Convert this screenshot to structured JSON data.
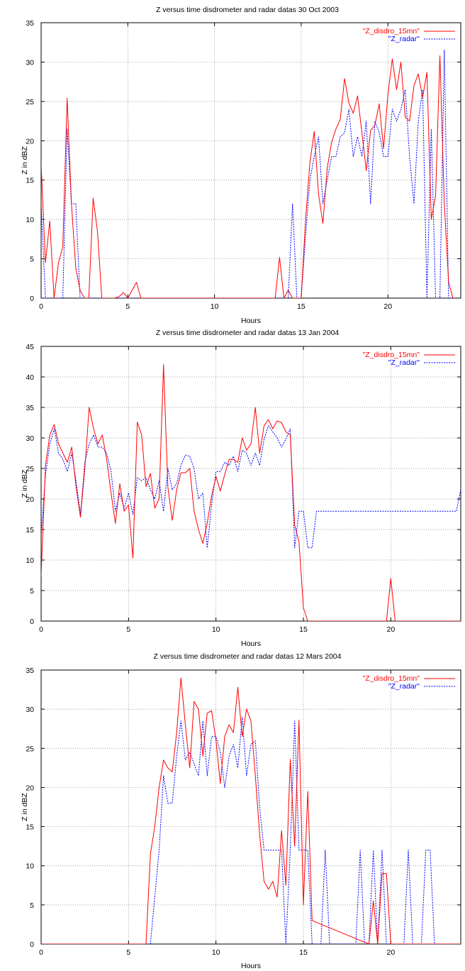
{
  "chart_data": [
    {
      "type": "line",
      "title": "Z versus time disdrometer and radar datas  30 Oct 2003",
      "xlabel": "Hours",
      "ylabel": "Z in dBZ",
      "xlim": [
        0,
        24.2
      ],
      "ylim": [
        0,
        35
      ],
      "xticks": [
        0,
        5,
        10,
        15,
        20
      ],
      "yticks": [
        0,
        5,
        10,
        15,
        20,
        25,
        30,
        35
      ],
      "grid": true,
      "legend": "top-right",
      "series": [
        {
          "name": "\"Z_disdro_15mn\"",
          "color": "#ff0000",
          "style": "solid",
          "x": [
            0,
            0.25,
            0.5,
            0.75,
            1.0,
            1.25,
            1.5,
            1.75,
            2.0,
            2.25,
            2.5,
            2.75,
            3.0,
            3.25,
            3.5,
            3.75,
            4.0,
            4.25,
            4.5,
            4.75,
            5.0,
            5.25,
            5.5,
            5.75,
            6.0,
            13.5,
            13.75,
            14.0,
            14.25,
            14.5,
            14.75,
            15.0,
            15.25,
            15.5,
            15.75,
            16.0,
            16.25,
            16.5,
            16.75,
            17.0,
            17.25,
            17.5,
            17.75,
            18.0,
            18.25,
            18.5,
            18.75,
            19.0,
            19.25,
            19.5,
            19.75,
            20.0,
            20.25,
            20.5,
            20.75,
            21.0,
            21.25,
            21.5,
            21.75,
            22.0,
            22.25,
            22.5,
            22.75,
            23.0,
            23.25,
            23.5,
            23.75
          ],
          "values": [
            17,
            4.5,
            9.8,
            0,
            4.5,
            6.5,
            25.4,
            12,
            3.8,
            1,
            0,
            0,
            12.7,
            8.5,
            0,
            0,
            0,
            0,
            0.2,
            0.7,
            0,
            1,
            2,
            0,
            0,
            0,
            5.2,
            0,
            1,
            0,
            0,
            0,
            10,
            17.2,
            21.2,
            13.2,
            9.5,
            16.5,
            19.8,
            21.5,
            22.7,
            27.9,
            24.8,
            23.5,
            25.7,
            21,
            16.2,
            21.3,
            22,
            24.7,
            19,
            25.9,
            30.4,
            26.5,
            30,
            23,
            22.5,
            27,
            28.5,
            25.5,
            28.7,
            10,
            13,
            30.8,
            12,
            2,
            0
          ]
        },
        {
          "name": "\"Z_radar\"",
          "color": "#0000ff",
          "style": "dotted",
          "x": [
            0,
            0.25,
            0.5,
            0.75,
            1.0,
            1.25,
            1.5,
            1.75,
            2.0,
            2.25,
            2.5,
            13.75,
            14.0,
            14.25,
            14.5,
            14.75,
            15.0,
            15.25,
            15.5,
            15.75,
            16.0,
            16.25,
            16.5,
            16.75,
            17.0,
            17.25,
            17.5,
            17.75,
            18.0,
            18.25,
            18.5,
            18.75,
            19.0,
            19.25,
            19.5,
            19.75,
            20.0,
            20.25,
            20.5,
            20.75,
            21.0,
            21.25,
            21.5,
            21.75,
            22.0,
            22.25,
            22.5,
            22.75,
            23.0,
            23.25,
            23.5,
            23.75
          ],
          "values": [
            12,
            0,
            0,
            0,
            0,
            0,
            21.5,
            12,
            12,
            0,
            0,
            0,
            0,
            0,
            12,
            0,
            0,
            8,
            15,
            18,
            20.5,
            12,
            15,
            18,
            18,
            20.5,
            21,
            24,
            18,
            20.5,
            18,
            22.5,
            12,
            22.5,
            21,
            18,
            18,
            24,
            22.5,
            24,
            26.5,
            18,
            12,
            22.5,
            26.5,
            0,
            21.5,
            0,
            0,
            31.5,
            0,
            0
          ]
        }
      ]
    },
    {
      "type": "line",
      "title": "Z versus time disdrometer and radar datas  13 Jan 2004",
      "xlabel": "Hours",
      "ylabel": "Z in dBZ",
      "xlim": [
        0,
        24
      ],
      "ylim": [
        0,
        45
      ],
      "xticks": [
        0,
        5,
        10,
        15,
        20
      ],
      "yticks": [
        0,
        5,
        10,
        15,
        20,
        25,
        30,
        35,
        40,
        45
      ],
      "grid": true,
      "legend": "top-right",
      "series": [
        {
          "name": "\"Z_disdro_15mn\"",
          "color": "#ff0000",
          "style": "solid",
          "x": [
            0,
            0.25,
            0.5,
            0.75,
            1.0,
            1.25,
            1.5,
            1.75,
            2.0,
            2.25,
            2.5,
            2.75,
            3.0,
            3.25,
            3.5,
            3.75,
            4.0,
            4.25,
            4.5,
            4.75,
            5.0,
            5.25,
            5.5,
            5.75,
            6.0,
            6.25,
            6.5,
            6.75,
            7.0,
            7.25,
            7.5,
            7.75,
            8.0,
            8.25,
            8.5,
            8.75,
            9.0,
            9.25,
            9.5,
            9.75,
            10.0,
            10.25,
            10.5,
            10.75,
            11.0,
            11.25,
            11.5,
            11.75,
            12.0,
            12.25,
            12.5,
            12.75,
            13.0,
            13.25,
            13.5,
            13.75,
            14.0,
            14.25,
            14.5,
            14.75,
            15.0,
            15.25,
            15.5,
            19.5,
            19.75,
            20.0,
            20.25,
            20.5,
            24.0
          ],
          "values": [
            7.5,
            25.5,
            30.5,
            32.2,
            29,
            27.5,
            26,
            28.5,
            22,
            17,
            25,
            35,
            31.5,
            29,
            30.5,
            26.5,
            21,
            16,
            22.5,
            18,
            19,
            10.3,
            32.6,
            30.5,
            22,
            24.2,
            18.5,
            20,
            42,
            22,
            16.5,
            21.5,
            24.3,
            24.3,
            25,
            18,
            15,
            12.7,
            16,
            20.5,
            23.7,
            21.3,
            24,
            26.5,
            26.5,
            26,
            30,
            28,
            29,
            35,
            27.5,
            32,
            33,
            31.5,
            32.8,
            32.5,
            31,
            30.5,
            15.7,
            13,
            2.2,
            0,
            0,
            0,
            0,
            7,
            0,
            0,
            0
          ]
        },
        {
          "name": "\"Z_radar\"",
          "color": "#0000ff",
          "style": "dotted",
          "x": [
            0,
            0.25,
            0.5,
            0.75,
            1.0,
            1.25,
            1.5,
            1.75,
            2.0,
            2.25,
            2.5,
            2.75,
            3.0,
            3.25,
            3.5,
            3.75,
            4.0,
            4.25,
            4.5,
            4.75,
            5.0,
            5.25,
            5.5,
            5.75,
            6.0,
            6.25,
            6.5,
            6.75,
            7.0,
            7.25,
            7.5,
            7.75,
            8.0,
            8.25,
            8.5,
            8.75,
            9.0,
            9.25,
            9.5,
            9.75,
            10.0,
            10.25,
            10.5,
            10.75,
            11.0,
            11.25,
            11.5,
            11.75,
            12.0,
            12.25,
            12.5,
            12.75,
            13.0,
            13.25,
            13.5,
            13.75,
            14.0,
            14.25,
            14.5,
            14.75,
            15.0,
            15.25,
            15.5,
            15.75,
            16.0,
            23.5,
            23.75,
            24.0
          ],
          "values": [
            14,
            24,
            29,
            31.5,
            27.5,
            26.5,
            24.5,
            27.5,
            23,
            17.5,
            26,
            29,
            30.5,
            28.5,
            28.5,
            27.5,
            24.5,
            18,
            21,
            18.5,
            21,
            17.5,
            23.5,
            23,
            23.5,
            21.5,
            20,
            23,
            18,
            25,
            21.5,
            22.5,
            25.5,
            27.2,
            27,
            25,
            20,
            21,
            12,
            19,
            24.5,
            24.5,
            26,
            25.5,
            27,
            24.5,
            28,
            27.5,
            25.5,
            27.5,
            25.5,
            29.8,
            32,
            31,
            30,
            28.5,
            29.8,
            31.5,
            12,
            18,
            18,
            12,
            12,
            18,
            18,
            18,
            18,
            21.5
          ]
        }
      ]
    },
    {
      "type": "line",
      "title": "Z versus time disdrometer and radar datas 12 Mars 2004",
      "xlabel": "Hours",
      "ylabel": "Z in dBZ",
      "xlim": [
        0,
        24
      ],
      "ylim": [
        0,
        35
      ],
      "xticks": [
        0,
        5,
        10,
        15,
        20
      ],
      "yticks": [
        0,
        5,
        10,
        15,
        20,
        25,
        30,
        35
      ],
      "grid": true,
      "legend": "top-right",
      "series": [
        {
          "name": "\"Z_disdro_15mn\"",
          "color": "#ff0000",
          "style": "solid",
          "x": [
            0,
            6.0,
            6.25,
            6.5,
            6.75,
            7.0,
            7.25,
            7.5,
            7.75,
            8.0,
            8.25,
            8.5,
            8.75,
            9.0,
            9.25,
            9.5,
            9.75,
            10.0,
            10.25,
            10.5,
            10.75,
            11.0,
            11.25,
            11.5,
            11.75,
            12.0,
            12.25,
            12.5,
            12.75,
            13.0,
            13.25,
            13.5,
            13.75,
            14.0,
            14.25,
            14.5,
            14.75,
            15.0,
            15.25,
            15.5,
            18.75,
            19.0,
            19.25,
            19.5,
            19.75,
            20.0,
            20.25,
            24.0
          ],
          "values": [
            0,
            0,
            11.5,
            15,
            20,
            23.5,
            22.5,
            22,
            27,
            34,
            28,
            22.5,
            31,
            30,
            24,
            29.5,
            29.8,
            26,
            20.5,
            26.5,
            28,
            27,
            32.8,
            26.5,
            30,
            28.5,
            21.5,
            14,
            8,
            7,
            8,
            6,
            14.5,
            7.5,
            23.6,
            12.5,
            28.6,
            5,
            19.5,
            3,
            0,
            5.5,
            0,
            9,
            9,
            0,
            0,
            0
          ]
        },
        {
          "name": "\"Z_radar\"",
          "color": "#0000ff",
          "style": "dotted",
          "x": [
            0,
            6.25,
            6.5,
            6.75,
            7.0,
            7.25,
            7.5,
            7.75,
            8.0,
            8.25,
            8.5,
            8.75,
            9.0,
            9.25,
            9.5,
            9.75,
            10.0,
            10.25,
            10.5,
            10.75,
            11.0,
            11.25,
            11.5,
            11.75,
            12.0,
            12.25,
            12.5,
            12.75,
            13.0,
            13.25,
            13.5,
            13.75,
            14.0,
            14.25,
            14.5,
            14.75,
            15.0,
            15.25,
            15.5,
            15.75,
            16.0,
            16.25,
            16.5,
            16.75,
            17.0,
            17.25,
            17.5,
            17.75,
            18.0,
            18.25,
            18.5,
            18.75,
            19.0,
            19.25,
            19.5,
            19.75,
            20.0,
            20.25,
            20.5,
            20.75,
            21.0,
            21.25,
            21.5,
            21.75,
            22.0,
            22.25,
            22.5,
            22.75,
            23.0,
            23.25,
            24.0
          ],
          "values": [
            0,
            0,
            6,
            12,
            21.5,
            18,
            18,
            24,
            28.5,
            23.5,
            24.5,
            23,
            21.5,
            28.5,
            21.5,
            26.5,
            26.5,
            24.5,
            20,
            24,
            25.5,
            22.5,
            29,
            21.5,
            25.5,
            26,
            17.5,
            12,
            12,
            12,
            12,
            12,
            0,
            12,
            28.5,
            12,
            12,
            12,
            0,
            0,
            0,
            12,
            0,
            0,
            0,
            0,
            0,
            0,
            0,
            12,
            0,
            0,
            12,
            0,
            12,
            0,
            0,
            0,
            0,
            0,
            12,
            0,
            0,
            0,
            12,
            12,
            0,
            0,
            0,
            0,
            0
          ]
        }
      ]
    }
  ]
}
